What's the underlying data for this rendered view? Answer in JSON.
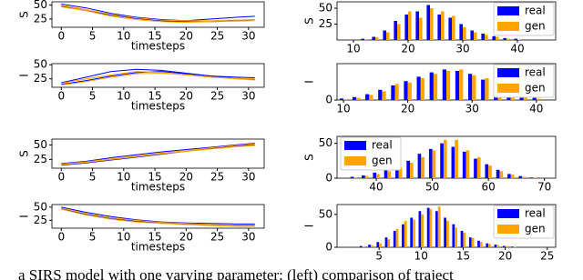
{
  "chart_data": [
    {
      "type": "line",
      "ylabel": "S",
      "xlabel": "timesteps",
      "x": [
        0,
        4,
        8,
        12,
        16,
        20,
        24,
        28,
        31
      ],
      "xlim": [
        -1.5,
        32.5
      ],
      "xticks": [
        0,
        5,
        10,
        15,
        20,
        25,
        30
      ],
      "ylim": [
        10,
        56
      ],
      "yticks": [
        25,
        50
      ],
      "series": [
        {
          "color": "#0000ff",
          "values": [
            52,
            45,
            35,
            28,
            24,
            22,
            25,
            28,
            30
          ]
        },
        {
          "color": "#0000ff",
          "values": [
            48,
            40,
            32,
            26,
            22,
            20,
            20,
            22,
            24
          ]
        },
        {
          "color": "#ffa500",
          "values": [
            50,
            42,
            33,
            27,
            23,
            22,
            22,
            23,
            24
          ]
        },
        {
          "color": "#ffa500",
          "values": [
            47,
            40,
            30,
            24,
            20,
            19,
            20,
            21,
            22
          ]
        }
      ]
    },
    {
      "type": "bar",
      "ylabel": "S",
      "x": [
        12,
        14,
        16,
        18,
        20,
        22,
        24,
        26,
        28,
        30,
        32,
        34,
        36,
        38,
        40
      ],
      "xlim": [
        7,
        47
      ],
      "xticks": [
        10,
        20,
        30,
        40
      ],
      "ylim": [
        0,
        60
      ],
      "yticks": [
        25,
        50
      ],
      "legend": "upper right",
      "series": [
        {
          "name": "real",
          "color": "#0000ff",
          "values": [
            2,
            5,
            15,
            30,
            40,
            45,
            55,
            40,
            35,
            25,
            15,
            10,
            6,
            3,
            2
          ]
        },
        {
          "name": "gen",
          "color": "#ffa500",
          "values": [
            1,
            4,
            12,
            25,
            45,
            35,
            50,
            45,
            38,
            20,
            12,
            8,
            5,
            2,
            1
          ]
        }
      ]
    },
    {
      "type": "line",
      "ylabel": "I",
      "xlabel": "timesteps",
      "x": [
        0,
        4,
        8,
        12,
        16,
        20,
        24,
        28,
        31
      ],
      "xlim": [
        -1.5,
        32.5
      ],
      "xticks": [
        0,
        5,
        10,
        15,
        20,
        25,
        30
      ],
      "ylim": [
        10,
        52
      ],
      "yticks": [
        25,
        50
      ],
      "series": [
        {
          "color": "#0000ff",
          "values": [
            18,
            28,
            38,
            42,
            40,
            35,
            30,
            28,
            27
          ]
        },
        {
          "color": "#0000ff",
          "values": [
            15,
            22,
            30,
            36,
            38,
            34,
            30,
            26,
            24
          ]
        },
        {
          "color": "#ffa500",
          "values": [
            17,
            25,
            32,
            38,
            36,
            32,
            28,
            26,
            25
          ]
        },
        {
          "color": "#ffa500",
          "values": [
            14,
            20,
            28,
            34,
            35,
            32,
            28,
            25,
            23
          ]
        }
      ]
    },
    {
      "type": "bar",
      "ylabel": "I",
      "x": [
        10,
        12,
        14,
        16,
        18,
        20,
        22,
        24,
        26,
        28,
        30,
        32,
        34,
        36,
        38,
        40
      ],
      "xlim": [
        9,
        43
      ],
      "xticks": [
        10,
        20,
        30,
        40
      ],
      "ylim": [
        0,
        50
      ],
      "yticks": [
        0
      ],
      "legend": "upper right",
      "series": [
        {
          "name": "real",
          "color": "#0000ff",
          "values": [
            2,
            4,
            8,
            14,
            20,
            26,
            32,
            38,
            42,
            40,
            36,
            28,
            20,
            12,
            6,
            3
          ]
        },
        {
          "name": "gen",
          "color": "#ffa500",
          "values": [
            1,
            3,
            7,
            12,
            22,
            24,
            30,
            36,
            40,
            42,
            34,
            30,
            18,
            10,
            5,
            2
          ]
        }
      ]
    },
    {
      "type": "line",
      "ylabel": "S",
      "xlabel": "timesteps",
      "x": [
        0,
        4,
        8,
        12,
        16,
        20,
        24,
        28,
        31
      ],
      "xlim": [
        -1.5,
        32.5
      ],
      "xticks": [
        0,
        5,
        10,
        15,
        20,
        25,
        30
      ],
      "ylim": [
        10,
        60
      ],
      "yticks": [
        25,
        50
      ],
      "series": [
        {
          "color": "#0000ff",
          "values": [
            18,
            22,
            28,
            33,
            38,
            42,
            46,
            50,
            53
          ]
        },
        {
          "color": "#0000ff",
          "values": [
            15,
            19,
            24,
            29,
            34,
            39,
            44,
            48,
            50
          ]
        },
        {
          "color": "#ffa500",
          "values": [
            17,
            21,
            26,
            31,
            36,
            40,
            45,
            49,
            52
          ]
        },
        {
          "color": "#ffa500",
          "values": [
            16,
            20,
            25,
            30,
            35,
            39,
            43,
            47,
            49
          ]
        }
      ]
    },
    {
      "type": "bar",
      "ylabel": "S",
      "x": [
        36,
        38,
        40,
        42,
        44,
        46,
        48,
        50,
        52,
        54,
        56,
        58,
        60,
        62,
        64,
        66,
        68
      ],
      "xlim": [
        33,
        72
      ],
      "xticks": [
        40,
        50,
        60,
        70
      ],
      "ylim": [
        0,
        60
      ],
      "yticks": [
        0,
        50
      ],
      "legend": "upper left",
      "series": [
        {
          "name": "real",
          "color": "#0000ff",
          "values": [
            2,
            4,
            8,
            12,
            18,
            25,
            35,
            42,
            50,
            45,
            38,
            28,
            20,
            12,
            6,
            3,
            1
          ]
        },
        {
          "name": "gen",
          "color": "#ffa500",
          "values": [
            1,
            3,
            6,
            10,
            15,
            22,
            30,
            40,
            55,
            55,
            40,
            30,
            18,
            10,
            5,
            2,
            1
          ]
        }
      ]
    },
    {
      "type": "line",
      "ylabel": "I",
      "xlabel": "timesteps",
      "x": [
        0,
        4,
        8,
        12,
        16,
        20,
        24,
        28,
        31
      ],
      "xlim": [
        -1.5,
        32.5
      ],
      "xticks": [
        0,
        5,
        10,
        15,
        20,
        25,
        30
      ],
      "ylim": [
        10,
        55
      ],
      "yticks": [
        25,
        50
      ],
      "series": [
        {
          "color": "#0000ff",
          "values": [
            50,
            40,
            32,
            26,
            22,
            20,
            19,
            18,
            18
          ]
        },
        {
          "color": "#0000ff",
          "values": [
            47,
            36,
            28,
            23,
            20,
            18,
            16,
            15,
            15
          ]
        },
        {
          "color": "#ffa500",
          "values": [
            48,
            38,
            30,
            25,
            21,
            19,
            17,
            16,
            16
          ]
        },
        {
          "color": "#ffa500",
          "values": [
            46,
            35,
            27,
            22,
            19,
            17,
            15,
            14,
            14
          ]
        }
      ]
    },
    {
      "type": "bar",
      "ylabel": "I",
      "x": [
        3,
        4,
        5,
        6,
        7,
        8,
        9,
        10,
        11,
        12,
        13,
        14,
        15,
        16,
        17,
        18,
        19,
        20,
        21
      ],
      "xlim": [
        0,
        26
      ],
      "xticks": [
        5,
        10,
        15,
        20,
        25
      ],
      "ylim": [
        0,
        65
      ],
      "yticks": [
        0,
        50
      ],
      "legend": "upper right",
      "series": [
        {
          "name": "real",
          "color": "#0000ff",
          "values": [
            2,
            4,
            8,
            15,
            25,
            35,
            45,
            55,
            60,
            55,
            45,
            35,
            25,
            15,
            10,
            6,
            4,
            2,
            1
          ]
        },
        {
          "name": "gen",
          "color": "#ffa500",
          "values": [
            1,
            3,
            6,
            12,
            28,
            40,
            42,
            50,
            58,
            62,
            40,
            30,
            22,
            14,
            8,
            5,
            3,
            2,
            1
          ]
        }
      ]
    }
  ],
  "caption": "a SIRS model with one varying parameter: (left) comparison of traject"
}
